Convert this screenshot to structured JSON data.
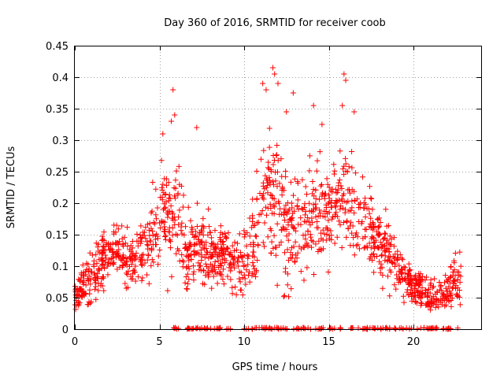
{
  "chart_data": {
    "type": "scatter",
    "title": "Day 360 of 2016, SRMTID for receiver coob",
    "xlabel": "GPS time / hours",
    "ylabel": "SRMTID / TECUs",
    "xlim": [
      0,
      24
    ],
    "ylim": [
      0,
      0.45
    ],
    "x_ticks": [
      0,
      5,
      10,
      15,
      20
    ],
    "x_tick_labels": [
      "0",
      "5",
      "10",
      "15",
      "20"
    ],
    "y_ticks": [
      0,
      0.05,
      0.1,
      0.15,
      0.2,
      0.25,
      0.3,
      0.35,
      0.4,
      0.45
    ],
    "y_tick_labels": [
      "0",
      "0.05",
      "0.1",
      "0.15",
      "0.2",
      "0.25",
      "0.3",
      "0.35",
      "0.4",
      "0.45"
    ],
    "grid": true,
    "marker": "+",
    "point_color": "#ff0000",
    "series": [
      {
        "name": "SRMTID",
        "trend": {
          "x": [
            0,
            0.5,
            1,
            1.5,
            2,
            2.5,
            3,
            3.5,
            4,
            4.5,
            5,
            5.5,
            6,
            6.5,
            7,
            7.5,
            8,
            8.5,
            9,
            9.5,
            10,
            10.5,
            11,
            11.5,
            12,
            12.5,
            13,
            13.5,
            14,
            14.5,
            15,
            15.5,
            16,
            16.5,
            17,
            17.5,
            18,
            18.5,
            19,
            19.5,
            20,
            20.5,
            21,
            21.5,
            22,
            22.5
          ],
          "y": [
            0.05,
            0.07,
            0.08,
            0.1,
            0.12,
            0.13,
            0.11,
            0.11,
            0.12,
            0.14,
            0.17,
            0.18,
            0.17,
            0.14,
            0.13,
            0.13,
            0.12,
            0.12,
            0.11,
            0.11,
            0.11,
            0.13,
            0.2,
            0.22,
            0.2,
            0.17,
            0.16,
            0.17,
            0.18,
            0.19,
            0.19,
            0.2,
            0.2,
            0.18,
            0.17,
            0.16,
            0.13,
            0.12,
            0.1,
            0.08,
            0.07,
            0.06,
            0.05,
            0.05,
            0.06,
            0.08
          ]
        },
        "spread": {
          "x": [
            0,
            1,
            2,
            3,
            4,
            5,
            6,
            7,
            8,
            9,
            10,
            11,
            12,
            13,
            14,
            15,
            16,
            17,
            18,
            19,
            20,
            21,
            22,
            22.8
          ],
          "y": [
            0.02,
            0.03,
            0.03,
            0.03,
            0.03,
            0.05,
            0.06,
            0.04,
            0.04,
            0.03,
            0.04,
            0.06,
            0.08,
            0.06,
            0.06,
            0.06,
            0.06,
            0.05,
            0.04,
            0.03,
            0.02,
            0.02,
            0.02,
            0.03
          ]
        },
        "highlights": [
          {
            "x": 5.8,
            "y": 0.38
          },
          {
            "x": 5.9,
            "y": 0.34
          },
          {
            "x": 5.7,
            "y": 0.33
          },
          {
            "x": 5.2,
            "y": 0.31
          },
          {
            "x": 7.2,
            "y": 0.32
          },
          {
            "x": 11.1,
            "y": 0.39
          },
          {
            "x": 11.3,
            "y": 0.38
          },
          {
            "x": 11.7,
            "y": 0.415
          },
          {
            "x": 11.8,
            "y": 0.405
          },
          {
            "x": 12.0,
            "y": 0.39
          },
          {
            "x": 12.9,
            "y": 0.375
          },
          {
            "x": 14.1,
            "y": 0.355
          },
          {
            "x": 15.9,
            "y": 0.405
          },
          {
            "x": 16.0,
            "y": 0.395
          },
          {
            "x": 15.8,
            "y": 0.355
          },
          {
            "x": 16.5,
            "y": 0.345
          },
          {
            "x": 14.6,
            "y": 0.325
          },
          {
            "x": 12.5,
            "y": 0.345
          }
        ],
        "zero_band": [
          [
            5.8,
            9.2
          ],
          [
            10.0,
            15.8
          ],
          [
            16.2,
            22.7
          ]
        ],
        "n_points": 1500
      }
    ]
  }
}
